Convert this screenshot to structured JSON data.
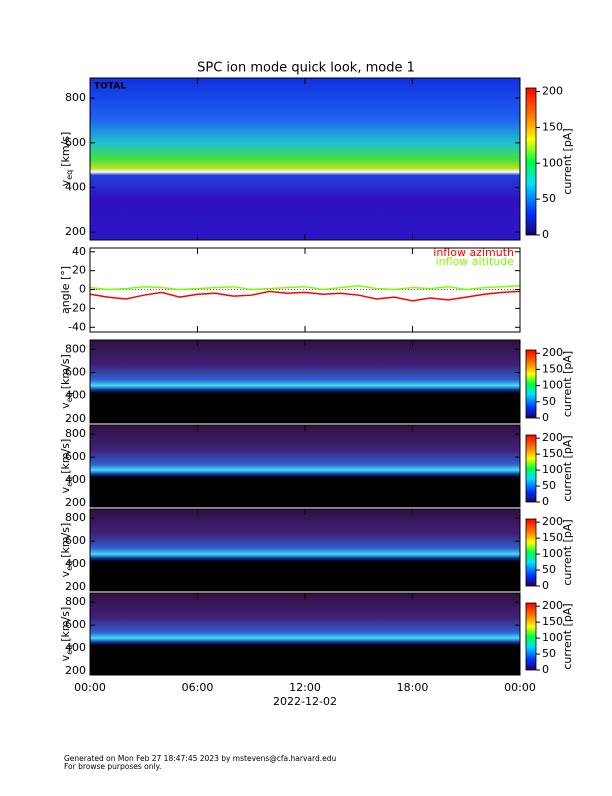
{
  "chart_data": [
    {
      "type": "heatmap",
      "title": "SPC ion mode quick look, mode 1",
      "label": "TOTAL",
      "ylabel": {
        "main": "v",
        "sub": "eq",
        "unit": "[km/s]"
      },
      "ylim": [
        165,
        890
      ],
      "yticks": [
        200,
        400,
        600,
        800
      ],
      "colorbar": {
        "label": "current [pA]",
        "lim": [
          0,
          205
        ],
        "ticks": [
          0,
          50,
          100,
          150,
          200
        ]
      }
    },
    {
      "type": "line",
      "ylabel": "angle [°]",
      "ylim": [
        -45,
        44
      ],
      "yticks": [
        -40,
        -20,
        0,
        20,
        40
      ],
      "x": [
        0,
        1,
        2,
        3,
        4,
        5,
        6,
        7,
        8,
        9,
        10,
        11,
        12,
        13,
        14,
        15,
        16,
        17,
        18,
        19,
        20,
        21,
        22,
        23,
        24
      ],
      "series": [
        {
          "name": "inflow azimuth",
          "color": "#ff0000",
          "values": [
            -5,
            -8,
            -10,
            -6,
            -3,
            -8,
            -5,
            -4,
            -7,
            -6,
            -2,
            -4,
            -3,
            -5,
            -4,
            -6,
            -10,
            -8,
            -12,
            -9,
            -11,
            -8,
            -5,
            -3,
            -2
          ]
        },
        {
          "name": "inflow altitude",
          "color": "#7fff00",
          "values": [
            2,
            0,
            1,
            3,
            2,
            0,
            1,
            2,
            3,
            0,
            1,
            2,
            3,
            0,
            2,
            4,
            1,
            0,
            2,
            1,
            3,
            0,
            2,
            3,
            4
          ]
        }
      ]
    },
    {
      "type": "heatmap",
      "ylabel": {
        "main": "v",
        "sub": "eq",
        "unit": "[km/s]"
      },
      "ylim": [
        165,
        880
      ],
      "yticks": [
        200,
        400,
        600,
        800
      ],
      "colorbar": {
        "label": "current [pA]",
        "lim": [
          0,
          210
        ],
        "ticks": [
          0,
          50,
          100,
          150,
          200
        ]
      }
    },
    {
      "type": "heatmap",
      "ylabel": {
        "main": "v",
        "sub": "eq",
        "unit": "[km/s]"
      },
      "ylim": [
        165,
        880
      ],
      "yticks": [
        200,
        400,
        600,
        800
      ],
      "colorbar": {
        "label": "current [pA]",
        "lim": [
          0,
          210
        ],
        "ticks": [
          0,
          50,
          100,
          150,
          200
        ]
      }
    },
    {
      "type": "heatmap",
      "ylabel": {
        "main": "v",
        "sub": "eq",
        "unit": "[km/s]"
      },
      "ylim": [
        165,
        880
      ],
      "yticks": [
        200,
        400,
        600,
        800
      ],
      "colorbar": {
        "label": "current [pA]",
        "lim": [
          0,
          210
        ],
        "ticks": [
          0,
          50,
          100,
          150,
          200
        ]
      }
    },
    {
      "type": "heatmap",
      "ylabel": {
        "main": "v",
        "sub": "eq",
        "unit": "[km/s]"
      },
      "ylim": [
        165,
        880
      ],
      "yticks": [
        200,
        400,
        600,
        800
      ],
      "colorbar": {
        "label": "current [pA]",
        "lim": [
          0,
          210
        ],
        "ticks": [
          0,
          50,
          100,
          150,
          200
        ]
      }
    }
  ],
  "x_axis": {
    "xlim": [
      0,
      24
    ],
    "xlabel": "2022-12-02",
    "xticks": [
      {
        "value": 0,
        "label": "00:00"
      },
      {
        "value": 6,
        "label": "06:00"
      },
      {
        "value": 12,
        "label": "12:00"
      },
      {
        "value": 18,
        "label": "18:00"
      },
      {
        "value": 24,
        "label": "00:00"
      }
    ]
  },
  "footer": [
    "Generated on Mon Feb 27 18:47:45 2023 by mstevens@cfa.harvard.edu",
    "For browse purposes only."
  ]
}
